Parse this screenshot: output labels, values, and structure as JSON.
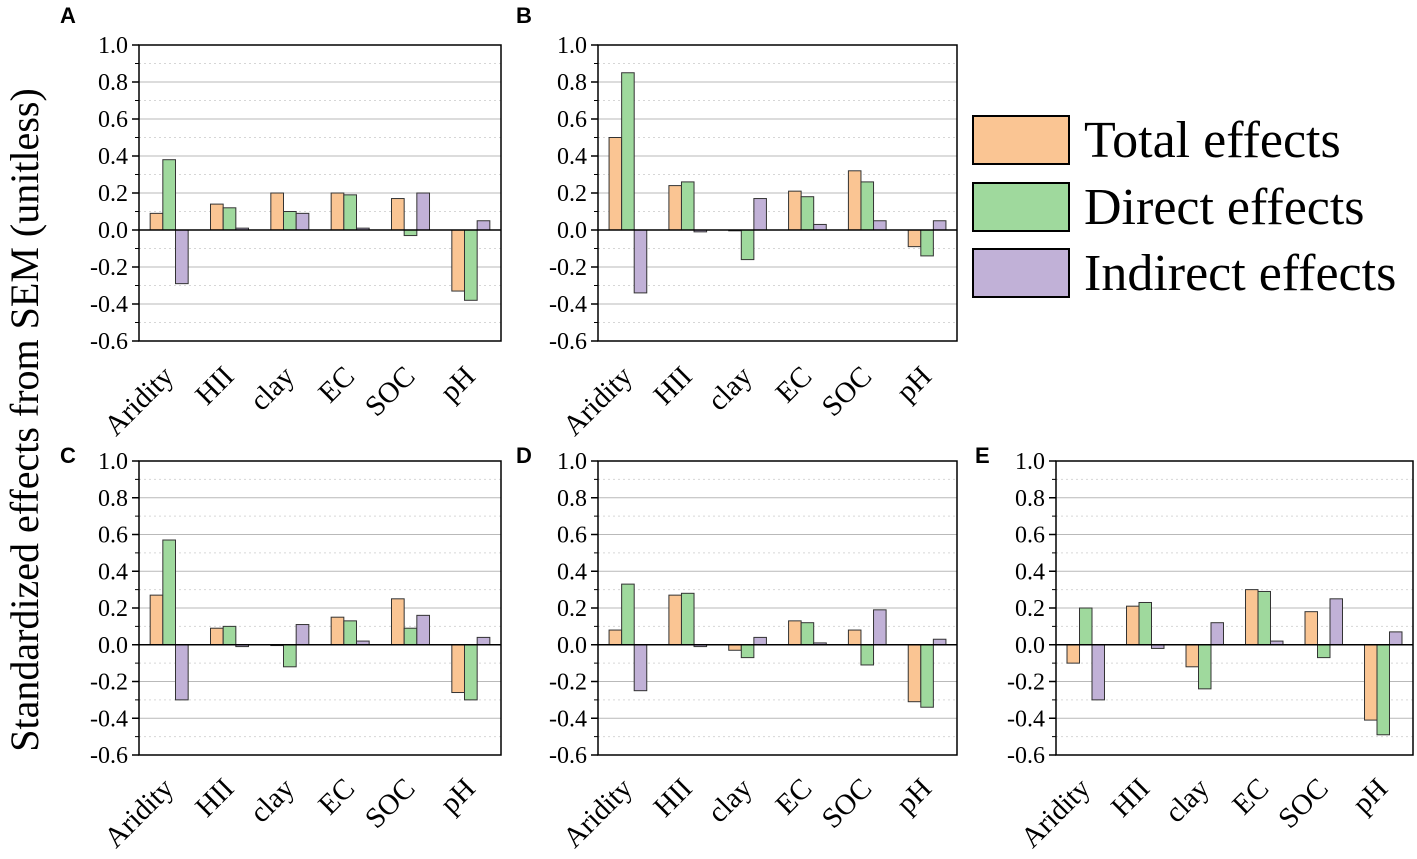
{
  "ylabel": "Standardized effects from SEM (unitless)",
  "legend": [
    {
      "label": "Total effects",
      "color": "#FAC593"
    },
    {
      "label": "Direct effects",
      "color": "#9FD99D"
    },
    {
      "label": "Indirect effects",
      "color": "#C1B1D7"
    }
  ],
  "chart_data": [
    {
      "type": "bar",
      "panel": "A",
      "categories": [
        "Aridity",
        "HII",
        "clay",
        "EC",
        "SOC",
        "pH"
      ],
      "ylim": [
        -0.6,
        1.0
      ],
      "yticks": [
        "1.0",
        "0.8",
        "0.6",
        "0.4",
        "0.2",
        "0.0",
        "-0.2",
        "-0.4",
        "-0.6"
      ],
      "series": [
        {
          "name": "Total effects",
          "values": [
            0.09,
            0.14,
            0.2,
            0.2,
            0.17,
            -0.33
          ]
        },
        {
          "name": "Direct effects",
          "values": [
            0.38,
            0.12,
            0.1,
            0.19,
            -0.03,
            -0.38
          ]
        },
        {
          "name": "Indirect effects",
          "values": [
            -0.29,
            0.01,
            0.09,
            0.01,
            0.2,
            0.05
          ]
        }
      ]
    },
    {
      "type": "bar",
      "panel": "B",
      "categories": [
        "Aridity",
        "HII",
        "clay",
        "EC",
        "SOC",
        "pH"
      ],
      "ylim": [
        -0.6,
        1.0
      ],
      "yticks": [
        "1.0",
        "0.8",
        "0.6",
        "0.4",
        "0.2",
        "0.0",
        "-0.2",
        "-0.4",
        "-0.6"
      ],
      "series": [
        {
          "name": "Total effects",
          "values": [
            0.5,
            0.24,
            0.0,
            0.21,
            0.32,
            -0.09
          ]
        },
        {
          "name": "Direct effects",
          "values": [
            0.85,
            0.26,
            -0.16,
            0.18,
            0.26,
            -0.14
          ]
        },
        {
          "name": "Indirect effects",
          "values": [
            -0.34,
            -0.01,
            0.17,
            0.03,
            0.05,
            0.05
          ]
        }
      ]
    },
    {
      "type": "bar",
      "panel": "C",
      "categories": [
        "Aridity",
        "HII",
        "clay",
        "EC",
        "SOC",
        "pH"
      ],
      "ylim": [
        -0.6,
        1.0
      ],
      "yticks": [
        "1.0",
        "0.8",
        "0.6",
        "0.4",
        "0.2",
        "0.0",
        "-0.2",
        "-0.4",
        "-0.6"
      ],
      "series": [
        {
          "name": "Total effects",
          "values": [
            0.27,
            0.09,
            0.0,
            0.15,
            0.25,
            -0.26
          ]
        },
        {
          "name": "Direct effects",
          "values": [
            0.57,
            0.1,
            -0.12,
            0.13,
            0.09,
            -0.3
          ]
        },
        {
          "name": "Indirect effects",
          "values": [
            -0.3,
            -0.01,
            0.11,
            0.02,
            0.16,
            0.04
          ]
        }
      ]
    },
    {
      "type": "bar",
      "panel": "D",
      "categories": [
        "Aridity",
        "HII",
        "clay",
        "EC",
        "SOC",
        "pH"
      ],
      "ylim": [
        -0.6,
        1.0
      ],
      "yticks": [
        "1.0",
        "0.8",
        "0.6",
        "0.4",
        "0.2",
        "0.0",
        "-0.2",
        "-0.4",
        "-0.6"
      ],
      "series": [
        {
          "name": "Total effects",
          "values": [
            0.08,
            0.27,
            -0.03,
            0.13,
            0.08,
            -0.31
          ]
        },
        {
          "name": "Direct effects",
          "values": [
            0.33,
            0.28,
            -0.07,
            0.12,
            -0.11,
            -0.34
          ]
        },
        {
          "name": "Indirect effects",
          "values": [
            -0.25,
            -0.01,
            0.04,
            0.01,
            0.19,
            0.03
          ]
        }
      ]
    },
    {
      "type": "bar",
      "panel": "E",
      "categories": [
        "Aridity",
        "HII",
        "clay",
        "EC",
        "SOC",
        "pH"
      ],
      "ylim": [
        -0.6,
        1.0
      ],
      "yticks": [
        "1.0",
        "0.8",
        "0.6",
        "0.4",
        "0.2",
        "0.0",
        "-0.2",
        "-0.4",
        "-0.6"
      ],
      "series": [
        {
          "name": "Total effects",
          "values": [
            -0.1,
            0.21,
            -0.12,
            0.3,
            0.18,
            -0.41
          ]
        },
        {
          "name": "Direct effects",
          "values": [
            0.2,
            0.23,
            -0.24,
            0.29,
            -0.07,
            -0.49
          ]
        },
        {
          "name": "Indirect effects",
          "values": [
            -0.3,
            -0.02,
            0.12,
            0.02,
            0.25,
            0.07
          ]
        }
      ]
    }
  ]
}
